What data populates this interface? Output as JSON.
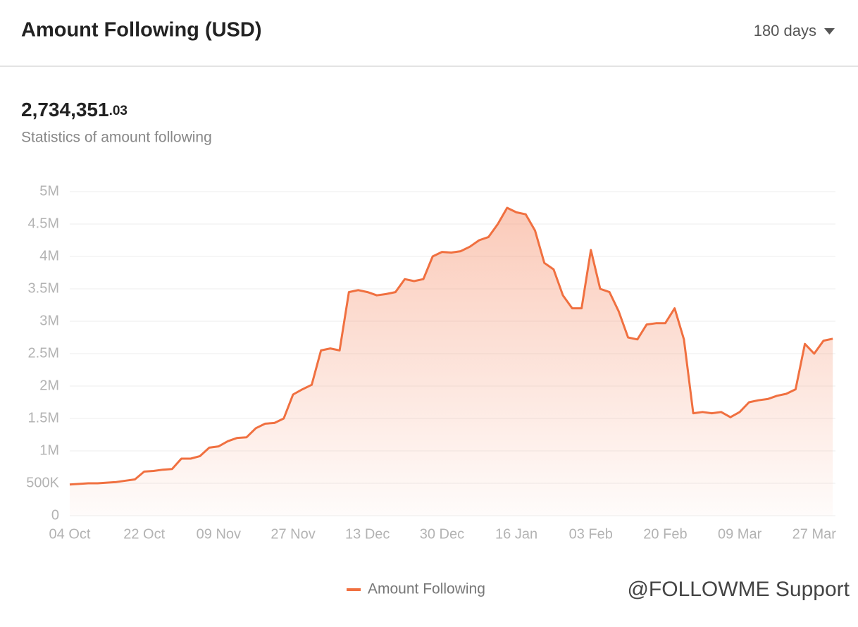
{
  "header": {
    "title": "Amount Following (USD)",
    "period": "180 days"
  },
  "summary": {
    "total": "2,734,351",
    "total_decimals": ".03",
    "caption": "Statistics of amount following"
  },
  "chart_data": {
    "type": "area",
    "categories": [
      "04 Oct",
      null,
      null,
      null,
      null,
      null,
      null,
      null,
      "22 Oct",
      null,
      null,
      null,
      null,
      null,
      null,
      null,
      "09 Nov",
      null,
      null,
      null,
      null,
      null,
      null,
      null,
      "27 Nov",
      null,
      null,
      null,
      null,
      null,
      null,
      null,
      "13 Dec",
      null,
      null,
      null,
      null,
      null,
      null,
      null,
      "30 Dec",
      null,
      null,
      null,
      null,
      null,
      null,
      null,
      "16 Jan",
      null,
      null,
      null,
      null,
      null,
      null,
      null,
      "03 Feb",
      null,
      null,
      null,
      null,
      null,
      null,
      null,
      "20 Feb",
      null,
      null,
      null,
      null,
      null,
      null,
      null,
      "09 Mar",
      null,
      null,
      null,
      null,
      null,
      null,
      null,
      "27 Mar",
      null,
      null
    ],
    "series": [
      {
        "name": "Amount Following",
        "color": "#f07040",
        "values": [
          480000,
          490000,
          500000,
          500000,
          510000,
          520000,
          540000,
          560000,
          680000,
          690000,
          710000,
          720000,
          880000,
          880000,
          920000,
          1050000,
          1070000,
          1150000,
          1200000,
          1210000,
          1350000,
          1420000,
          1430000,
          1500000,
          1870000,
          1950000,
          2020000,
          2550000,
          2580000,
          2550000,
          3450000,
          3480000,
          3450000,
          3400000,
          3420000,
          3450000,
          3650000,
          3620000,
          3650000,
          4000000,
          4070000,
          4060000,
          4080000,
          4150000,
          4250000,
          4300000,
          4500000,
          4750000,
          4680000,
          4650000,
          4400000,
          3900000,
          3800000,
          3400000,
          3200000,
          3200000,
          4100000,
          3500000,
          3450000,
          3150000,
          2750000,
          2720000,
          2950000,
          2970000,
          2970000,
          3200000,
          2720000,
          1580000,
          1600000,
          1580000,
          1600000,
          1520000,
          1600000,
          1750000,
          1780000,
          1800000,
          1850000,
          1880000,
          1950000,
          2650000,
          2500000,
          2700000,
          2730000
        ]
      }
    ],
    "ylim": [
      0,
      5000000
    ],
    "yticks": [
      {
        "value": 0,
        "label": "0"
      },
      {
        "value": 500000,
        "label": "500K"
      },
      {
        "value": 1000000,
        "label": "1M"
      },
      {
        "value": 1500000,
        "label": "1.5M"
      },
      {
        "value": 2000000,
        "label": "2M"
      },
      {
        "value": 2500000,
        "label": "2.5M"
      },
      {
        "value": 3000000,
        "label": "3M"
      },
      {
        "value": 3500000,
        "label": "3.5M"
      },
      {
        "value": 4000000,
        "label": "4M"
      },
      {
        "value": 4500000,
        "label": "4.5M"
      },
      {
        "value": 5000000,
        "label": "5M"
      }
    ],
    "grid": true,
    "legend": "bottom"
  },
  "watermark": "@FOLLOWME Support"
}
